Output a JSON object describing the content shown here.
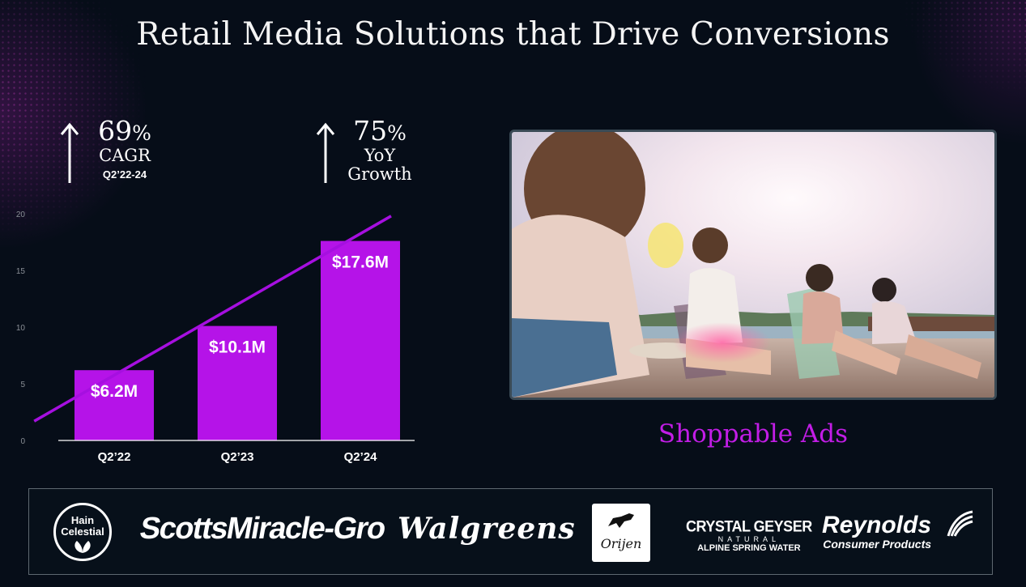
{
  "title": "Retail Media Solutions that Drive Conversions",
  "stats": [
    {
      "value": "69",
      "unit": "%",
      "label": "CAGR",
      "period": "Q2’22-24",
      "icon": "up-arrow-icon"
    },
    {
      "value": "75",
      "unit": "%",
      "label_line1": "YoY",
      "label_line2": "Growth",
      "icon": "up-arrow-icon"
    }
  ],
  "chart_data": {
    "type": "bar",
    "categories": [
      "Q2’22",
      "Q2’23",
      "Q2’24"
    ],
    "values": [
      6.2,
      10.1,
      17.6
    ],
    "data_labels": [
      "$6.2M",
      "$10.1M",
      "$17.6M"
    ],
    "yticks": [
      0,
      5,
      10,
      15,
      20
    ],
    "ylim": [
      0,
      20
    ],
    "bar_color": "#b513e8",
    "trendline_color": "#a60fe0",
    "trendline": {
      "x_start": -0.65,
      "y_start": 1.7,
      "x_end": 2.25,
      "y_end": 19.8
    },
    "grid": false,
    "legend": "none"
  },
  "video": {
    "icon": "video-thumbnail-beach-friends"
  },
  "video_caption": "Shoppable Ads",
  "partners": [
    {
      "name": "Hain Celestial",
      "line1": "Hain",
      "line2": "Celestial"
    },
    {
      "name": "ScottsMiracle-Gro"
    },
    {
      "name": "Walgreens"
    },
    {
      "name": "Orijen"
    },
    {
      "name": "Crystal Geyser",
      "line1": "CRYSTAL GEYSER",
      "line2": "NATURAL",
      "line3": "ALPINE SPRING WATER"
    },
    {
      "name": "Reynolds",
      "line1": "Reynolds",
      "line2": "Consumer Products"
    }
  ],
  "colors": {
    "background": "#060d18",
    "accent": "#b513e8",
    "caption": "#c21de6"
  }
}
